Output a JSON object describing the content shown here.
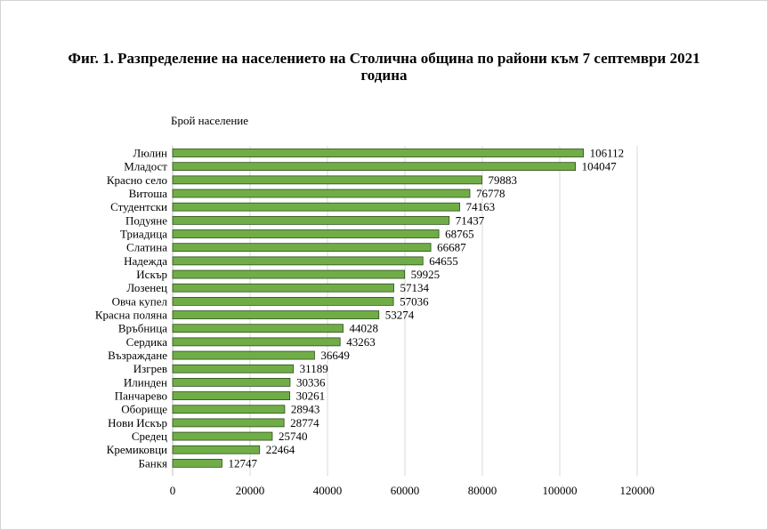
{
  "title_line1": "Фиг. 1. Разпределение на населението на Столична община по райони към 7 септември 2021",
  "title_line2": "година",
  "chart_data": {
    "type": "bar",
    "orientation": "horizontal",
    "ylabel": "Брой население",
    "categories": [
      "Люлин",
      "Младост",
      "Красно село",
      "Витоша",
      "Студентски",
      "Подуяне",
      "Триадица",
      "Слатина",
      "Надежда",
      "Искър",
      "Лозенец",
      "Овча купел",
      "Красна поляна",
      "Връбница",
      "Сердика",
      "Възраждане",
      "Изгрев",
      "Илинден",
      "Панчарево",
      "Оборище",
      "Нови Искър",
      "Средец",
      "Кремиковци",
      "Банкя"
    ],
    "values": [
      106112,
      104047,
      79883,
      76778,
      74163,
      71437,
      68765,
      66687,
      64655,
      59925,
      57134,
      57036,
      53274,
      44028,
      43263,
      36649,
      31189,
      30336,
      30261,
      28943,
      28774,
      25740,
      22464,
      12747
    ],
    "xlim": [
      0,
      120000
    ],
    "xticks": [
      0,
      20000,
      40000,
      60000,
      80000,
      100000,
      120000
    ],
    "grid": "vertical",
    "bar_color": "#70ad47",
    "bar_edge_color": "#2d4d1a"
  }
}
